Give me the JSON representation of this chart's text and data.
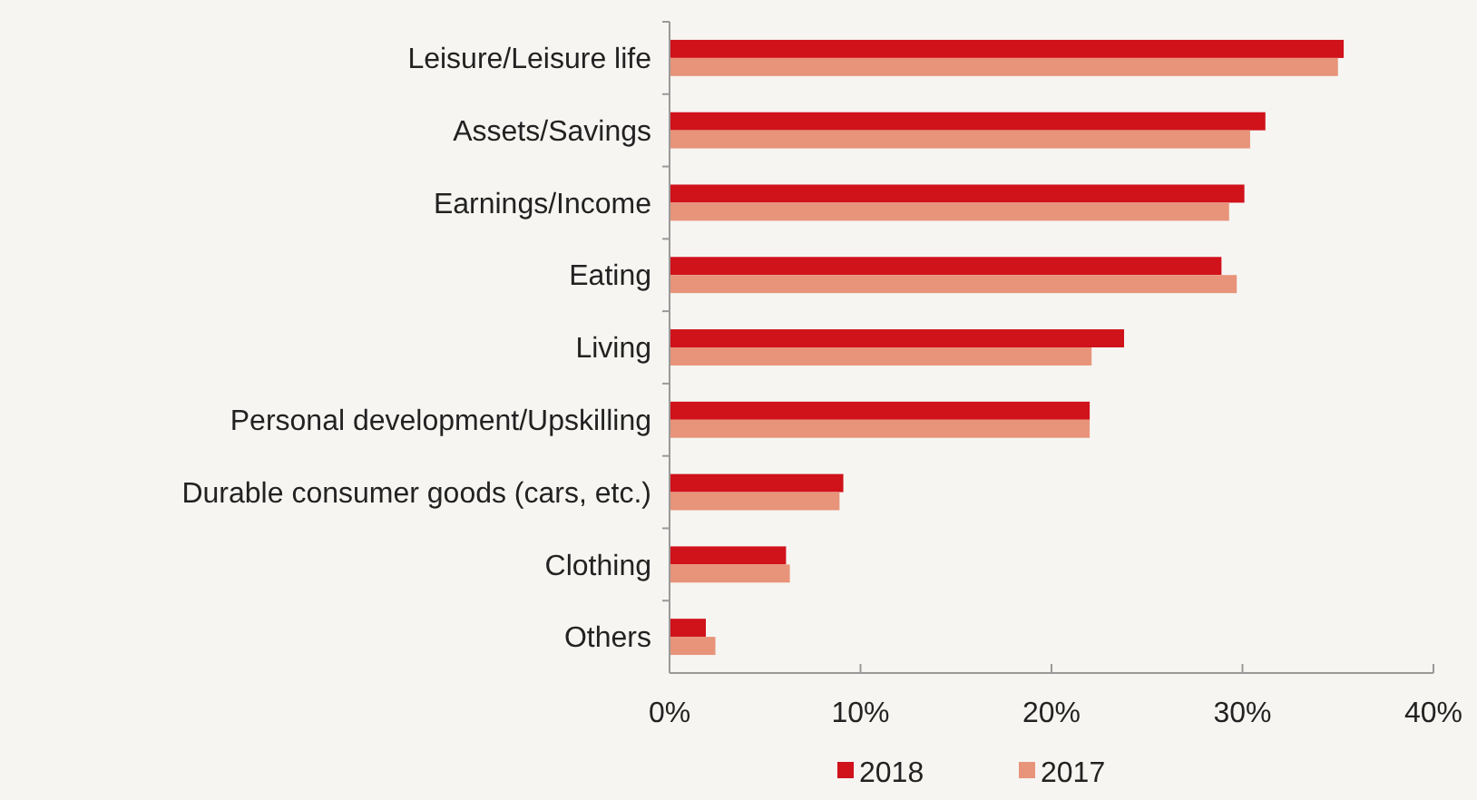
{
  "chart_data": {
    "type": "bar",
    "orientation": "horizontal",
    "categories": [
      "Leisure/Leisure life",
      "Assets/Savings",
      "Earnings/Income",
      "Eating",
      "Living",
      "Personal development/Upskilling",
      "Durable consumer goods (cars, etc.)",
      "Clothing",
      "Others"
    ],
    "series": [
      {
        "name": "2018",
        "color": "#d0121b",
        "values": [
          35.3,
          31.2,
          30.1,
          28.9,
          23.8,
          22.0,
          9.1,
          6.1,
          1.9
        ]
      },
      {
        "name": "2017",
        "color": "#e8947a",
        "values": [
          35.0,
          30.4,
          29.3,
          29.7,
          22.1,
          22.0,
          8.9,
          6.3,
          2.4
        ]
      }
    ],
    "xlim": [
      0,
      40
    ],
    "xticks": [
      {
        "value": 0,
        "label": "0%"
      },
      {
        "value": 10,
        "label": "10%"
      },
      {
        "value": 20,
        "label": "20%"
      },
      {
        "value": 30,
        "label": "30%"
      },
      {
        "value": 40,
        "label": "40%"
      }
    ],
    "grid": false,
    "legend": "bottom"
  }
}
